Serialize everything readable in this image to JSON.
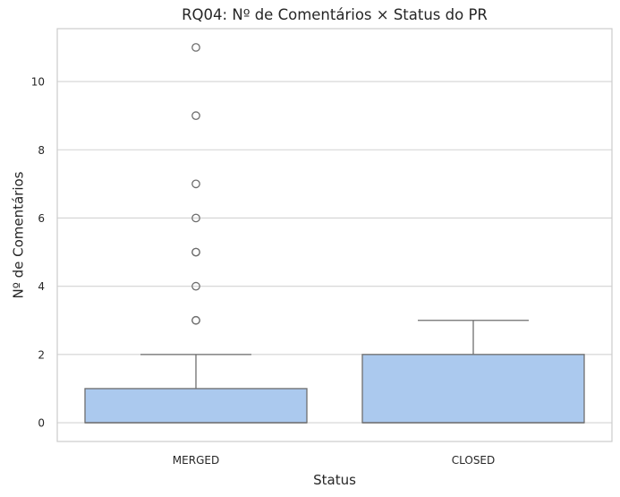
{
  "chart_data": {
    "type": "box",
    "title": "RQ04: Nº de Comentários × Status do PR",
    "xlabel": "Status",
    "ylabel": "Nº de Comentários",
    "ylim": [
      -0.55,
      11.55
    ],
    "yticks": [
      0,
      2,
      4,
      6,
      8,
      10
    ],
    "grid": true,
    "legend": "none",
    "box_color": "#abc9ee",
    "line_color": "#6e6e6e",
    "categories": [
      "MERGED",
      "CLOSED"
    ],
    "boxes": [
      {
        "category": "MERGED",
        "whisker_low": 0,
        "q1": 0,
        "median": 0,
        "q3": 1,
        "whisker_high": 2,
        "outliers": [
          3,
          3,
          4,
          5,
          5,
          6,
          7,
          9,
          11
        ]
      },
      {
        "category": "CLOSED",
        "whisker_low": 0,
        "q1": 0,
        "median": 0,
        "q3": 2,
        "whisker_high": 3,
        "outliers": []
      }
    ]
  }
}
